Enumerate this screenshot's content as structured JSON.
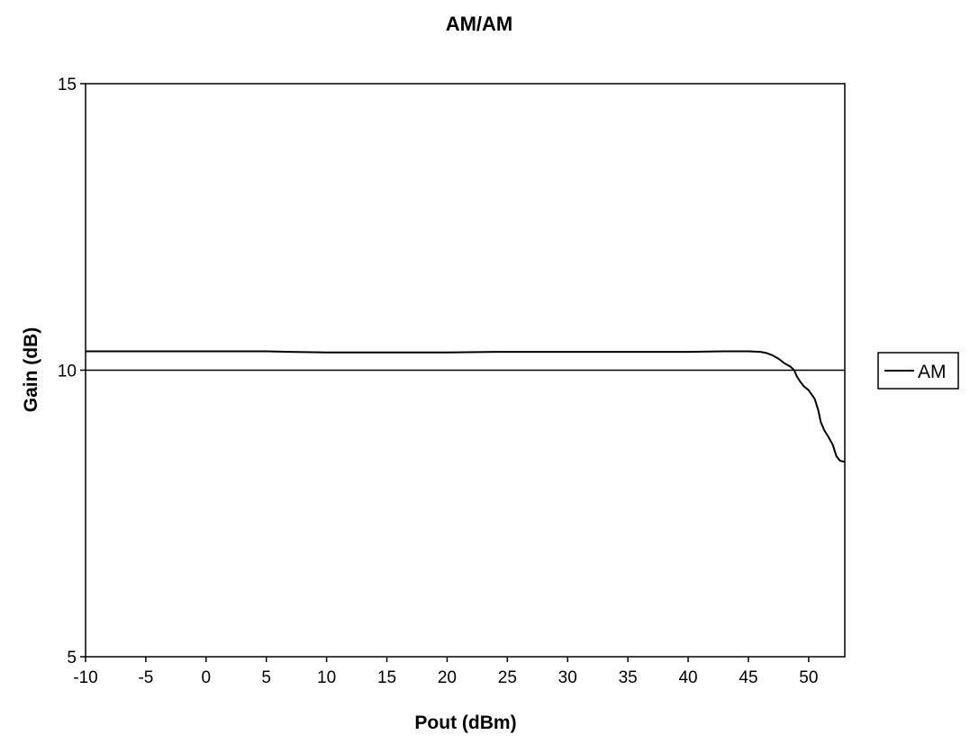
{
  "chart_data": {
    "type": "line",
    "title": "AM/AM",
    "xlabel": "Pout (dBm)",
    "ylabel": "Gain (dB)",
    "xlim": [
      -10,
      53
    ],
    "ylim": [
      5,
      15
    ],
    "xticks": [
      -10,
      -5,
      0,
      5,
      10,
      15,
      20,
      25,
      30,
      35,
      40,
      45,
      50
    ],
    "yticks": [
      5,
      10,
      15
    ],
    "grid": "horizontal at 10",
    "legend": "right",
    "series": [
      {
        "name": "AM",
        "color": "#000000",
        "x": [
          -10,
          0,
          5,
          7,
          10,
          20,
          24,
          30,
          40,
          43,
          45,
          46,
          46.5,
          47,
          47.5,
          48,
          48.5,
          48.8,
          49,
          49.3,
          49.6,
          50,
          50.5,
          50.8,
          51,
          51.3,
          51.6,
          52,
          52.3,
          52.6,
          53
        ],
        "y": [
          10.33,
          10.33,
          10.33,
          10.32,
          10.31,
          10.31,
          10.32,
          10.32,
          10.32,
          10.33,
          10.33,
          10.32,
          10.3,
          10.26,
          10.2,
          10.12,
          10.06,
          10.0,
          9.9,
          9.8,
          9.72,
          9.65,
          9.5,
          9.3,
          9.1,
          8.95,
          8.85,
          8.7,
          8.5,
          8.42,
          8.4
        ]
      }
    ]
  }
}
